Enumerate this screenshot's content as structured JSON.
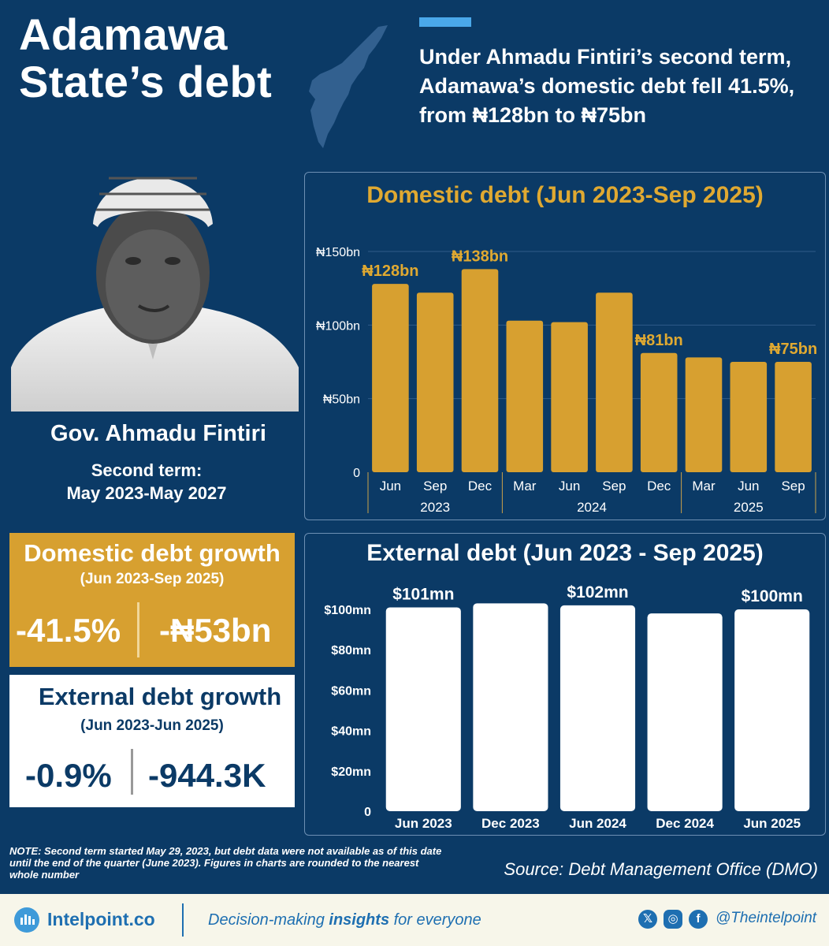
{
  "header": {
    "title_line1": "Adamawa",
    "title_line2": "State’s debt",
    "subtitle": "Under Ahmadu Fintiri’s second term, Adamawa’s domestic debt fell 41.5%, from ₦128bn to ₦75bn"
  },
  "governor": {
    "name": "Gov. Ahmadu Fintiri",
    "term_label": "Second term:",
    "term_dates": "May 2023-May 2027"
  },
  "domestic_growth": {
    "title": "Domestic debt growth",
    "period": "(Jun 2023-Sep 2025)",
    "percent": "-41.5%",
    "amount": "-₦53bn"
  },
  "external_growth": {
    "title": "External debt growth",
    "period": "(Jun 2023-Jun 2025)",
    "percent": "-0.9%",
    "amount": "-944.3K"
  },
  "note": "NOTE: Second term started May 29, 2023, but debt data were not available as of this date until the end of the quarter (June 2023). Figures in charts are rounded to the nearest whole number",
  "source": "Source: Debt Management Office (DMO)",
  "footer": {
    "logo": "Intelpoint.co",
    "tagline_pre": "Decision-making ",
    "tagline_bold": "insights",
    "tagline_post": " for everyone",
    "handle": "@Theintelpoint",
    "icons": [
      "x-icon",
      "instagram-icon",
      "facebook-icon"
    ]
  },
  "colors": {
    "background": "#0b3a66",
    "gold": "#d7a030",
    "accent_blue": "#4aa8ea",
    "white": "#ffffff"
  },
  "chart_data": [
    {
      "type": "bar",
      "title": "Domestic debt (Jun 2023-Sep 2025)",
      "categories": [
        "Jun",
        "Sep",
        "Dec",
        "Mar",
        "Jun",
        "Sep",
        "Dec",
        "Mar",
        "Jun",
        "Sep"
      ],
      "year_groups": [
        {
          "label": "2023",
          "count": 3
        },
        {
          "label": "2024",
          "count": 4
        },
        {
          "label": "2025",
          "count": 3
        }
      ],
      "values": [
        128,
        122,
        138,
        103,
        102,
        122,
        81,
        78,
        75,
        75
      ],
      "value_labels": [
        "₦128bn",
        "",
        "₦138bn",
        "",
        "",
        "",
        "₦81bn",
        "",
        "",
        "₦75bn"
      ],
      "yticks": [
        "0",
        "₦50bn",
        "₦100bn",
        "₦150bn"
      ],
      "ytick_values": [
        0,
        50,
        100,
        150
      ],
      "ylim": [
        0,
        150
      ],
      "color": "#d7a030",
      "grid": true
    },
    {
      "type": "bar",
      "title": "External debt (Jun 2023 - Sep 2025)",
      "categories": [
        "Jun 2023",
        "Dec 2023",
        "Jun 2024",
        "Dec 2024",
        "Jun 2025"
      ],
      "values": [
        101,
        103,
        102,
        98,
        100
      ],
      "value_labels": [
        "$101mn",
        "",
        "$102mn",
        "",
        "$100mn"
      ],
      "yticks": [
        "0",
        "$20mn",
        "$40mn",
        "$60mn",
        "$80mn",
        "$100mn"
      ],
      "ytick_values": [
        0,
        20,
        40,
        60,
        80,
        100
      ],
      "ylim": [
        0,
        100
      ],
      "color": "#ffffff",
      "grid": false
    }
  ]
}
